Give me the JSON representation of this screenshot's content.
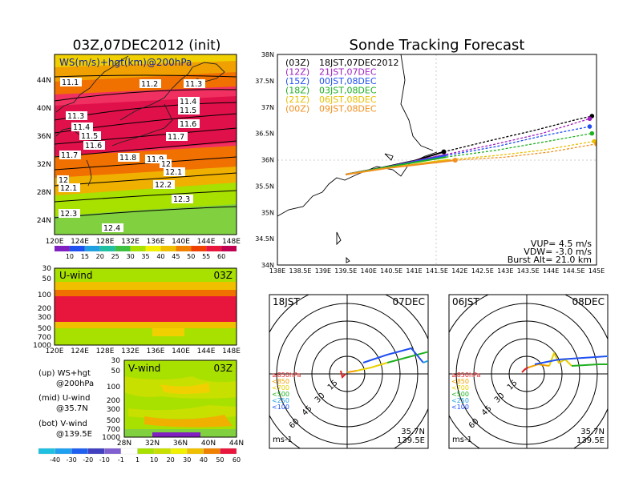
{
  "colors": {
    "line_03Z": "#000000",
    "line_12Z": "#a020c0",
    "line_15Z": "#2050f0",
    "line_18Z": "#20b020",
    "line_21Z": "#e8c000",
    "line_00Z": "#f09020",
    "band_strong": "#e8163c",
    "band_med": "#f08000",
    "band_green": "#a8e000"
  },
  "left_top": {
    "title": "03Z,07DEC2012 (init)",
    "label": "WS(m/s)+hgt(km)@200hPa",
    "x_ticks": [
      "120E",
      "124E",
      "128E",
      "132E",
      "136E",
      "140E",
      "144E",
      "148E"
    ],
    "y_ticks": [
      "44N",
      "40N",
      "36N",
      "32N",
      "28N",
      "24N"
    ],
    "contour_labels": [
      "11.1",
      "11.2",
      "11.3",
      "11.3",
      "11.4",
      "11.5",
      "11.4",
      "11.5",
      "11.6",
      "11.6",
      "11.7",
      "11.7",
      "11.8",
      "11.9",
      "12",
      "12.1",
      "12",
      "12.1",
      "12.2",
      "12.3",
      "12.3",
      "12.4"
    ],
    "colorbar": [
      "10",
      "15",
      "20",
      "25",
      "30",
      "35",
      "40",
      "45",
      "50",
      "55",
      "60"
    ]
  },
  "left_mid": {
    "label": "U-wind",
    "time": "03Z",
    "y_ticks": [
      "30",
      "50",
      "100",
      "200",
      "300",
      "500",
      "700",
      "1000"
    ],
    "x_ticks": [
      "120E",
      "124E",
      "128E",
      "132E",
      "136E",
      "140E",
      "144E",
      "148E"
    ]
  },
  "left_bot": {
    "label": "V-wind",
    "time": "03Z",
    "y_ticks": [
      "30",
      "50",
      "100",
      "200",
      "300",
      "500",
      "700",
      "1000"
    ],
    "x_ticks": [
      "28N",
      "32N",
      "36N",
      "40N",
      "44N"
    ],
    "colorbar": [
      "-40",
      "-30",
      "-20",
      "-10",
      "-1",
      "1",
      "10",
      "20",
      "30",
      "40",
      "50",
      "60"
    ]
  },
  "legend_notes": {
    "up": "(up) WS+hgt",
    "up2": "@200hPa",
    "mid": "(mid) U-wind",
    "mid2": "@35.7N",
    "bot": "(bot) V-wind",
    "bot2": "@139.5E"
  },
  "right_top": {
    "title": "Sonde Tracking Forecast",
    "x_ticks": [
      "138E",
      "138.5E",
      "139E",
      "139.5E",
      "140E",
      "140.5E",
      "141E",
      "141.5E",
      "142E",
      "142.5E",
      "143E",
      "143.5E",
      "144E",
      "144.5E",
      "145E"
    ],
    "y_ticks": [
      "38N",
      "37.5N",
      "37N",
      "36.5N",
      "36N",
      "35.5N",
      "35N",
      "34.5N",
      "34N"
    ],
    "legend": [
      {
        "code": "(03Z)",
        "text": "18JST,07DEC2012"
      },
      {
        "code": "(12Z)",
        "text": "21JST,07DEC"
      },
      {
        "code": "(15Z)",
        "text": "00JST,08DEC"
      },
      {
        "code": "(18Z)",
        "text": "03JST,08DEC"
      },
      {
        "code": "(21Z)",
        "text": "06JST,08DEC"
      },
      {
        "code": "(00Z)",
        "text": "09JST,08DEC"
      }
    ],
    "vup": "VUP= 4.5 m/s",
    "vdw": "VDW= -3.0 m/s",
    "burst": "Burst Alt= 21.0 km"
  },
  "polar_left": {
    "jst": "18JST",
    "date": "07DEC",
    "ring_labels": [
      "15",
      "30",
      "45",
      "60"
    ],
    "levels": [
      "≥850hPa",
      "<850",
      "<700",
      "<500",
      "<250",
      "<100"
    ],
    "unit": "ms-1",
    "lat": "35.7N",
    "lon": "139.5E"
  },
  "polar_right": {
    "jst": "06JST",
    "date": "08DEC",
    "ring_labels": [
      "15",
      "30",
      "45",
      "60"
    ],
    "levels": [
      "≥850hPa",
      "<850",
      "<700",
      "<500",
      "<250",
      "<100"
    ],
    "unit": "ms-1",
    "lat": "35.7N",
    "lon": "139.5E"
  },
  "chart_data": {
    "type": "line",
    "title": "Sonde Tracking Forecast",
    "xlim": [
      138,
      145
    ],
    "ylim": [
      34,
      38
    ],
    "series": [
      {
        "name": "(03Z) 18JST,07DEC2012",
        "points": [
          [
            139.5,
            35.72
          ],
          [
            140.3,
            35.85
          ],
          [
            141.0,
            35.98
          ],
          [
            141.65,
            36.15
          ],
          [
            142.6,
            36.35
          ],
          [
            143.6,
            36.55
          ],
          [
            144.5,
            36.75
          ],
          [
            144.9,
            36.83
          ]
        ]
      },
      {
        "name": "(12Z) 21JST,07DEC",
        "points": [
          [
            139.5,
            35.72
          ],
          [
            140.4,
            35.86
          ],
          [
            141.7,
            36.1
          ],
          [
            142.8,
            36.3
          ],
          [
            143.8,
            36.5
          ],
          [
            144.85,
            36.78
          ]
        ]
      },
      {
        "name": "(15Z) 00JST,08DEC",
        "points": [
          [
            139.5,
            35.72
          ],
          [
            140.4,
            35.86
          ],
          [
            141.7,
            36.08
          ],
          [
            142.8,
            36.25
          ],
          [
            143.8,
            36.45
          ],
          [
            144.85,
            36.63
          ]
        ]
      },
      {
        "name": "(18Z) 03JST,08DEC",
        "points": [
          [
            139.5,
            35.72
          ],
          [
            140.4,
            35.86
          ],
          [
            141.7,
            36.05
          ],
          [
            142.8,
            36.18
          ],
          [
            143.8,
            36.33
          ],
          [
            144.9,
            36.5
          ]
        ]
      },
      {
        "name": "(21Z) 06JST,08DEC",
        "points": [
          [
            139.5,
            35.72
          ],
          [
            140.4,
            35.84
          ],
          [
            141.75,
            36.0
          ],
          [
            142.8,
            36.08
          ],
          [
            143.8,
            36.18
          ],
          [
            144.95,
            36.35
          ]
        ]
      },
      {
        "name": "(00Z) 09JST,08DEC",
        "points": [
          [
            139.5,
            35.72
          ],
          [
            140.4,
            35.84
          ],
          [
            141.9,
            35.99
          ],
          [
            143.0,
            36.05
          ],
          [
            144.0,
            36.15
          ],
          [
            145.0,
            36.3
          ]
        ]
      }
    ],
    "burst_markers": [
      [
        141.65,
        36.15
      ],
      [
        141.9,
        35.99
      ]
    ]
  }
}
